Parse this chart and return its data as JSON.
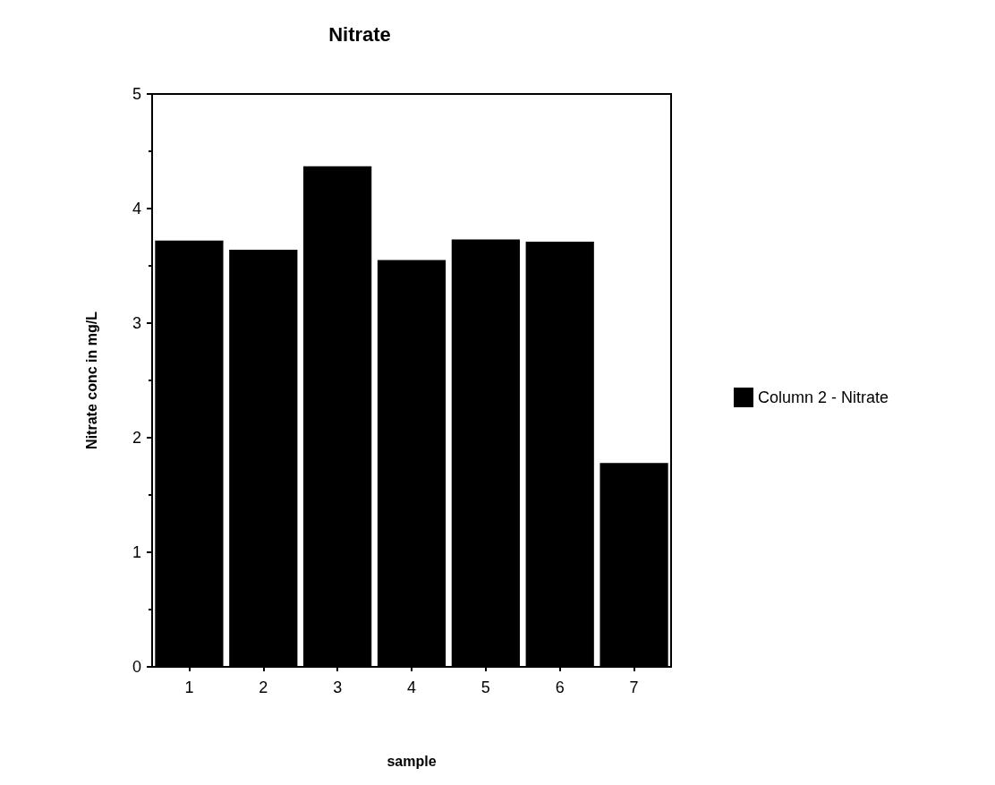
{
  "chart_data": {
    "type": "bar",
    "title": "Nitrate",
    "xlabel": "sample",
    "ylabel": "Nitrate conc in mg/L",
    "categories": [
      "1",
      "2",
      "3",
      "4",
      "5",
      "6",
      "7"
    ],
    "series": [
      {
        "name": "Column 2 - Nitrate",
        "color": "#000000",
        "values": [
          3.72,
          3.64,
          4.37,
          3.55,
          3.73,
          3.71,
          1.78
        ]
      }
    ],
    "ylim": [
      0,
      5
    ],
    "yticks": [
      0,
      1,
      2,
      3,
      4,
      5
    ],
    "grid": false,
    "legend": "right"
  }
}
